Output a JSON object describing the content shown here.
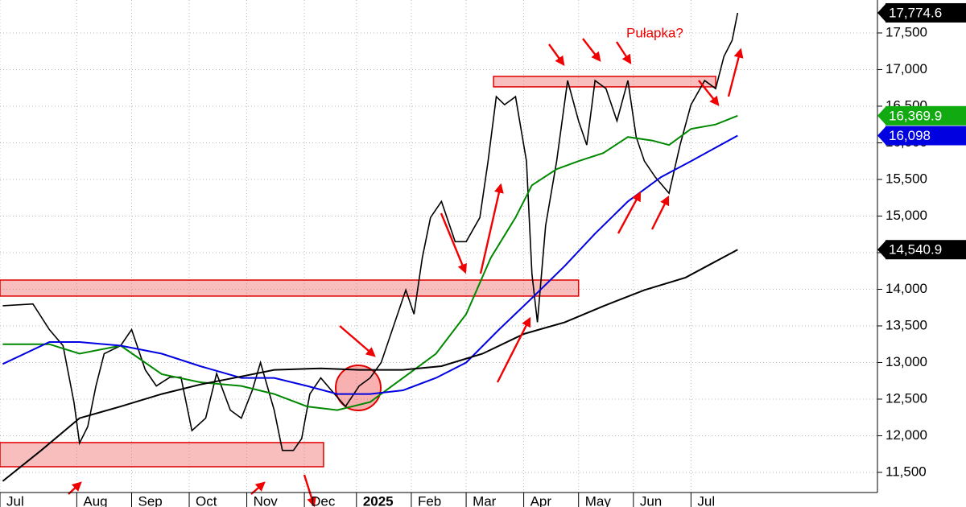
{
  "chart_data": {
    "type": "line",
    "xlim": [
      0,
      320
    ],
    "ylim": [
      11225,
      17950
    ],
    "xticks": [
      {
        "value": 0,
        "label": "Jul"
      },
      {
        "value": 28,
        "label": "Aug"
      },
      {
        "value": 48,
        "label": "Sep"
      },
      {
        "value": 69,
        "label": "Oct"
      },
      {
        "value": 90,
        "label": "Nov"
      },
      {
        "value": 111,
        "label": "Dec"
      },
      {
        "value": 130,
        "label": "2025"
      },
      {
        "value": 150,
        "label": "Feb"
      },
      {
        "value": 170,
        "label": "Mar"
      },
      {
        "value": 191,
        "label": "Apr"
      },
      {
        "value": 211,
        "label": "May"
      },
      {
        "value": 231,
        "label": "Jun"
      },
      {
        "value": 252,
        "label": "Jul"
      }
    ],
    "yticks": [
      {
        "value": 11500,
        "label": "11,500"
      },
      {
        "value": 12000,
        "label": "12,000"
      },
      {
        "value": 12500,
        "label": "12,500"
      },
      {
        "value": 13000,
        "label": "13,000"
      },
      {
        "value": 13500,
        "label": "13,500"
      },
      {
        "value": 14000,
        "label": "14,000"
      },
      {
        "value": 14500,
        "label": "14,500"
      },
      {
        "value": 15000,
        "label": "15,000"
      },
      {
        "value": 15500,
        "label": "15,500"
      },
      {
        "value": 16000,
        "label": "16,000"
      },
      {
        "value": 16500,
        "label": "16,500"
      },
      {
        "value": 17000,
        "label": "17,000"
      },
      {
        "value": 17500,
        "label": "17,500"
      }
    ],
    "grid": true,
    "series": [
      {
        "color": "#000000",
        "x": [
          1,
          12,
          18,
          23,
          27,
          29,
          32,
          35,
          38,
          44,
          48,
          53,
          57,
          62,
          66,
          70,
          75,
          79,
          84,
          88,
          92,
          95,
          100,
          103,
          107,
          110,
          113,
          117,
          122,
          126,
          131,
          135,
          139,
          144,
          148,
          151,
          154,
          157,
          161,
          166,
          170,
          175,
          178,
          181,
          184,
          188,
          192,
          194,
          196,
          199,
          203,
          207,
          211,
          214,
          217,
          221,
          225,
          229,
          232,
          235,
          239,
          244,
          248,
          252,
          257,
          261,
          264,
          267,
          269
        ],
        "values": [
          13775,
          13800,
          13450,
          13230,
          12450,
          11900,
          12125,
          12680,
          13120,
          13230,
          13450,
          12900,
          12680,
          12800,
          12800,
          12070,
          12240,
          12850,
          12350,
          12240,
          12620,
          13000,
          12350,
          11800,
          11800,
          11960,
          12570,
          12790,
          12570,
          12400,
          12680,
          12790,
          13000,
          13550,
          13990,
          13660,
          14430,
          14980,
          15200,
          14650,
          14650,
          14980,
          15750,
          16630,
          16520,
          16630,
          15750,
          14210,
          13550,
          14870,
          15750,
          16850,
          16300,
          15970,
          16850,
          16740,
          16300,
          16850,
          16080,
          15750,
          15530,
          15310,
          15970,
          16520,
          16850,
          16740,
          17180,
          17400,
          17774.6
        ]
      },
      {
        "color": "#008800",
        "x": [
          1,
          18,
          29,
          44,
          59,
          73,
          88,
          100,
          112,
          123,
          135,
          147,
          159,
          170,
          179,
          188,
          194,
          203,
          211,
          220,
          229,
          238,
          244,
          252,
          261,
          269
        ],
        "values": [
          13250,
          13250,
          13120,
          13230,
          12840,
          12730,
          12680,
          12570,
          12400,
          12350,
          12460,
          12790,
          13120,
          13660,
          14430,
          14980,
          15420,
          15640,
          15750,
          15860,
          16080,
          16030,
          15970,
          16190,
          16250,
          16369.9
        ]
      },
      {
        "color": "#0000e0",
        "x": [
          1,
          18,
          29,
          44,
          59,
          73,
          88,
          100,
          112,
          123,
          135,
          147,
          159,
          170,
          182,
          194,
          206,
          217,
          229,
          241,
          252,
          269
        ],
        "values": [
          12980,
          13280,
          13280,
          13230,
          13120,
          12950,
          12790,
          12790,
          12680,
          12570,
          12570,
          12620,
          12790,
          13000,
          13450,
          13880,
          14320,
          14760,
          15200,
          15530,
          15750,
          16098
        ]
      },
      {
        "color": "#000000",
        "x": [
          1,
          15,
          29,
          44,
          59,
          73,
          88,
          100,
          117,
          131,
          147,
          161,
          176,
          191,
          206,
          220,
          235,
          250,
          269
        ],
        "values": [
          11380,
          11800,
          12240,
          12400,
          12570,
          12700,
          12810,
          12900,
          12920,
          12900,
          12900,
          12950,
          13120,
          13390,
          13550,
          13770,
          13990,
          14160,
          14540.9
        ]
      }
    ],
    "price_tags": [
      {
        "value": 17774.6,
        "label": "17,774.6",
        "color": "#000000"
      },
      {
        "value": 16369.9,
        "label": "16,369.9",
        "color": "#11aa11"
      },
      {
        "value": 16098,
        "label": "16,098",
        "color": "#0000e0"
      },
      {
        "value": 14540.9,
        "label": "14,540.9",
        "color": "#000000"
      }
    ],
    "zones": [
      {
        "x": [
          0,
          211
        ],
        "y": [
          13907,
          14126
        ]
      },
      {
        "x": [
          0,
          118
        ],
        "y": [
          11577,
          11907
        ]
      },
      {
        "x": [
          180,
          261
        ],
        "y": [
          16764,
          16907
        ]
      }
    ],
    "annotation": "Pułapka?"
  }
}
